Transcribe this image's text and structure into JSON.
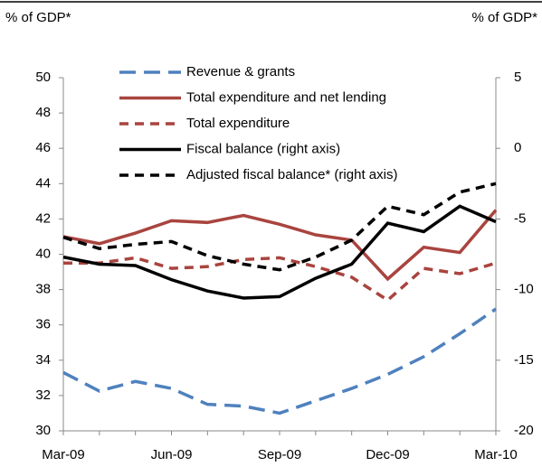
{
  "chart_data": {
    "type": "line",
    "y_label": "% of GDP*",
    "y2_label": "% of GDP*",
    "categories": [
      "Mar-09",
      null,
      null,
      "Jun-09",
      null,
      null,
      "Sep-09",
      null,
      null,
      "Dec-09",
      null,
      null,
      "Mar-10"
    ],
    "series": [
      {
        "name": "Revenue & grants",
        "color": "#4f81bd",
        "dashed": true,
        "values": [
          33.3,
          32.25,
          32.8,
          32.4,
          31.5,
          31.4,
          31.0,
          31.7,
          32.4,
          33.2,
          34.2,
          35.5,
          36.9
        ]
      },
      {
        "name": "Total expenditure and net lending",
        "color": "#a9443f",
        "dashed": false,
        "values": [
          41.0,
          40.6,
          41.2,
          41.9,
          41.8,
          42.2,
          41.7,
          41.1,
          40.8,
          38.6,
          40.4,
          40.1,
          42.5
        ]
      },
      {
        "name": "Total expenditure",
        "color": "#a9443f",
        "dashed": true,
        "values": [
          39.5,
          39.5,
          39.8,
          39.2,
          39.3,
          39.7,
          39.8,
          39.3,
          38.7,
          37.4,
          39.2,
          38.9,
          39.5
        ]
      },
      {
        "name": "Fiscal balance (right axis)",
        "color": "#000000",
        "dashed": false,
        "axis": "y2",
        "values": [
          -7.7,
          -8.2,
          -8.3,
          -9.3,
          -10.1,
          -10.6,
          -10.5,
          -9.2,
          -8.2,
          -5.3,
          -5.9,
          -4.1,
          -5.2
        ]
      },
      {
        "name": "Adjusted fiscal balance* (right axis)",
        "color": "#000000",
        "dashed": true,
        "axis": "y2",
        "values": [
          -6.3,
          -7.1,
          -6.8,
          -6.6,
          -7.6,
          -8.2,
          -8.6,
          -7.7,
          -6.5,
          -4.1,
          -4.7,
          -3.1,
          -2.5
        ]
      }
    ],
    "ylim": [
      30,
      50
    ],
    "yticks": [
      30,
      32,
      34,
      36,
      38,
      40,
      42,
      44,
      46,
      48,
      50
    ],
    "y2lim": [
      -20,
      5
    ],
    "y2ticks": [
      -20,
      -15,
      -10,
      -5,
      0,
      5
    ],
    "legend": "upper left",
    "grid": false
  }
}
